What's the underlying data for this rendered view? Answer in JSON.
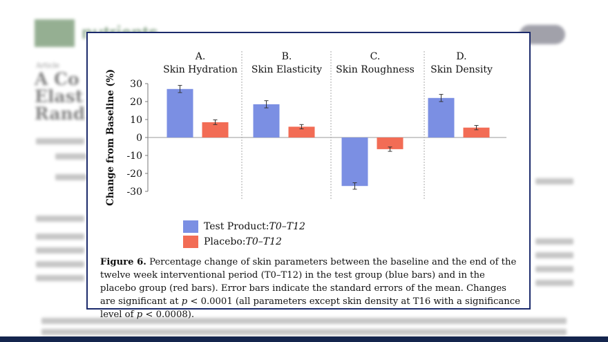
{
  "figure": {
    "label": "Figure 6.",
    "caption_1": " Percentage change of skin parameters between the baseline and the end of the twelve week interventional period (T0–T12) in the test group (blue bars) and in the placebo group (red bars). Error bars indicate the standard errors of the mean. Changes are significant at ",
    "caption_p1": "p",
    "caption_2": " < 0.0001 (all parameters except skin density at T16 with a significance level of ",
    "caption_p2": "p",
    "caption_3": " < 0.0008)."
  },
  "colors": {
    "test": "#7b8fe3",
    "placebo": "#f26c55",
    "border": "#1b2a6b"
  },
  "legend": {
    "test_label": "Test Product: ",
    "test_period": "T0–T12",
    "placebo_label": "Placebo: ",
    "placebo_period": "T0–T12"
  },
  "chart_data": {
    "type": "bar",
    "ylabel": "Change from Baseline (%)",
    "ylim": [
      -30,
      30
    ],
    "yticks": [
      30,
      20,
      10,
      0,
      -10,
      -20,
      -30
    ],
    "panels": [
      {
        "letter": "A.",
        "title": "Skin Hydration",
        "test": 27,
        "test_err": 2,
        "placebo": 8.5,
        "placebo_err": 1.3
      },
      {
        "letter": "B.",
        "title": "Skin Elasticity",
        "test": 18.5,
        "test_err": 2,
        "placebo": 6,
        "placebo_err": 1.2
      },
      {
        "letter": "C.",
        "title": "Skin Roughness",
        "test": -27,
        "test_err": 1.8,
        "placebo": -6.5,
        "placebo_err": 1.2
      },
      {
        "letter": "D.",
        "title": "Skin Density",
        "test": 22,
        "test_err": 2,
        "placebo": 5.5,
        "placebo_err": 1.2
      }
    ],
    "series": [
      {
        "name": "Test Product: T0–T12",
        "key": "test"
      },
      {
        "name": "Placebo: T0–T12",
        "key": "placebo"
      }
    ],
    "grid": false
  },
  "background": {
    "article_label": "Article",
    "title_lines": [
      "A Co",
      "Elast",
      "Rand"
    ],
    "journal": "nutrients"
  }
}
